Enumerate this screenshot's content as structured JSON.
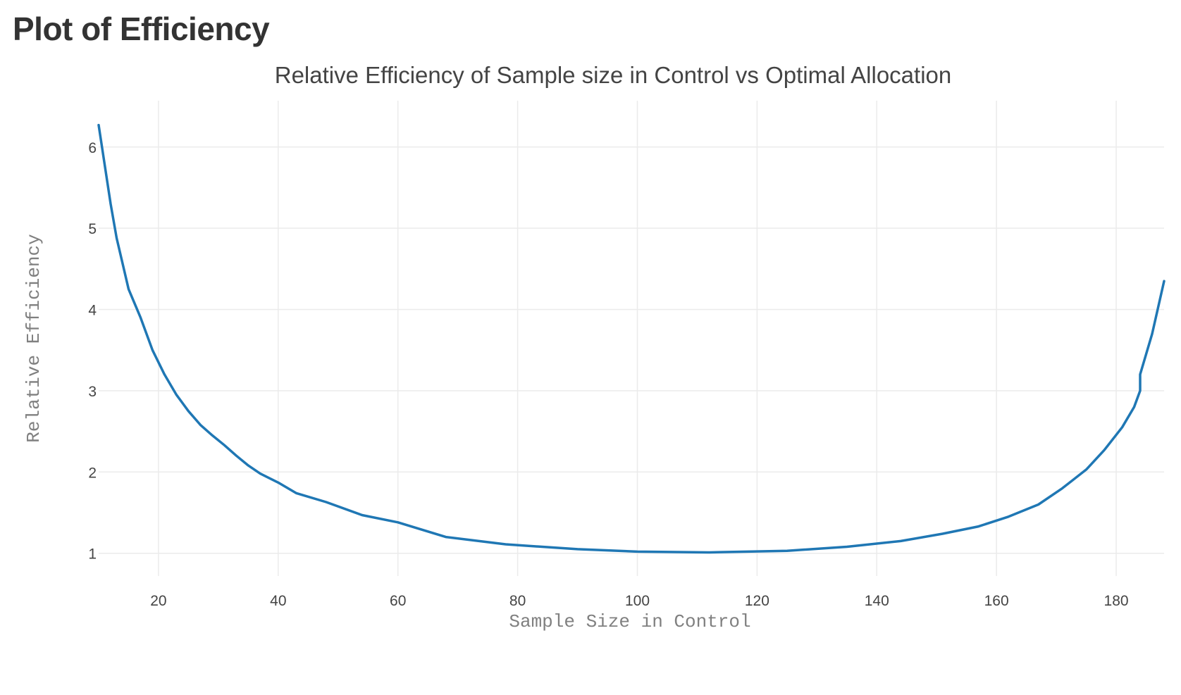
{
  "page": {
    "heading": "Plot of Efficiency"
  },
  "chart_data": {
    "type": "line",
    "title": "Relative Efficiency of Sample size in Control vs Optimal Allocation",
    "xlabel": "Sample Size in Control",
    "ylabel": "Relative Efficiency",
    "xlim": [
      10,
      188
    ],
    "ylim": [
      0.72,
      6.57
    ],
    "x_ticks": [
      20,
      40,
      60,
      80,
      100,
      120,
      140,
      160,
      180
    ],
    "y_ticks": [
      1,
      2,
      3,
      4,
      5,
      6
    ],
    "grid": true,
    "legend": "none",
    "line_color": "#1f77b4",
    "series": [
      {
        "x": [
          10,
          12,
          13,
          15,
          17,
          19,
          21,
          23,
          25,
          27,
          29,
          31,
          33,
          35,
          37,
          40,
          43,
          48,
          54,
          60,
          68,
          78,
          90,
          100,
          112,
          125,
          135,
          144,
          151,
          157,
          162,
          167,
          171,
          175,
          178,
          181,
          183,
          184,
          184,
          186,
          188
        ],
        "y": [
          6.27,
          5.3,
          4.88,
          4.25,
          3.9,
          3.5,
          3.2,
          2.95,
          2.75,
          2.58,
          2.45,
          2.33,
          2.2,
          2.08,
          1.98,
          1.87,
          1.74,
          1.63,
          1.47,
          1.38,
          1.2,
          1.11,
          1.05,
          1.02,
          1.01,
          1.03,
          1.08,
          1.15,
          1.24,
          1.33,
          1.45,
          1.6,
          1.8,
          2.03,
          2.27,
          2.55,
          2.8,
          3.0,
          3.2,
          3.7,
          4.35
        ]
      }
    ]
  }
}
